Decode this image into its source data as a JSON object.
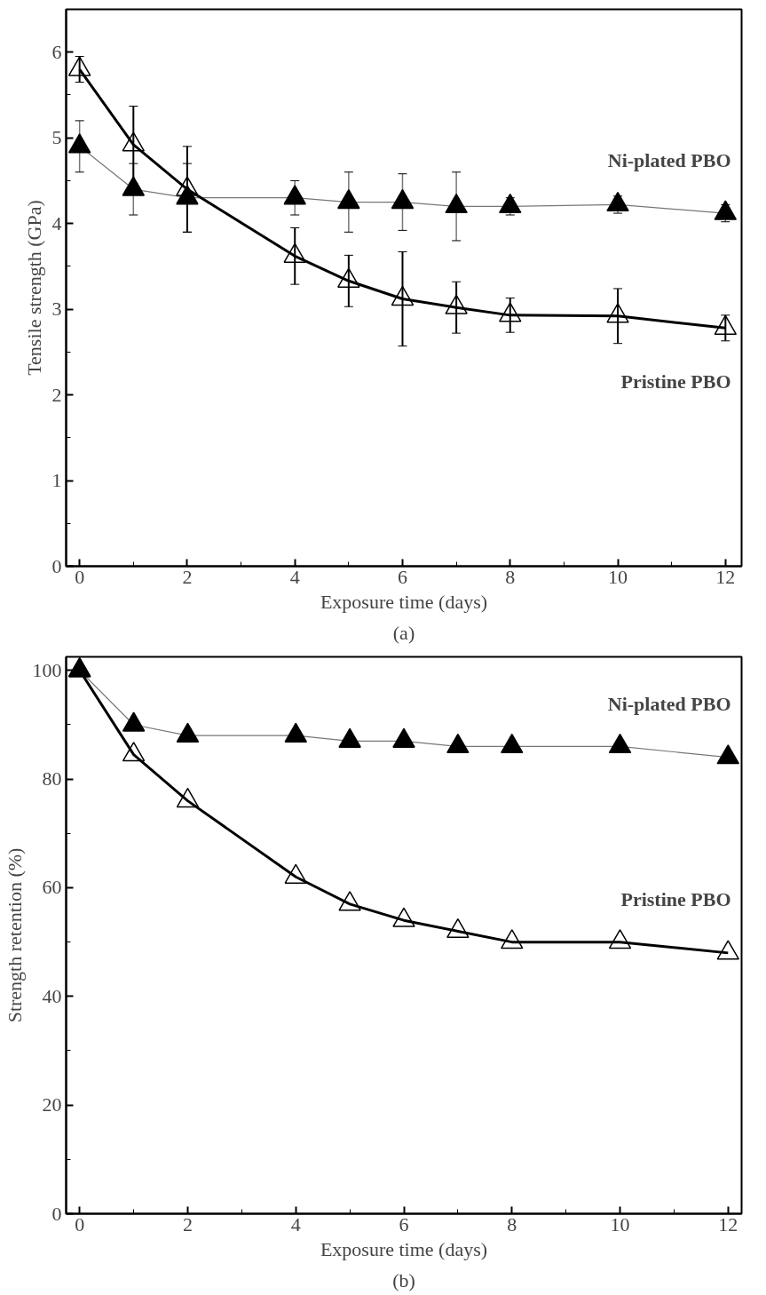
{
  "chart_data": [
    {
      "type": "line",
      "title": "(a)",
      "xlabel": "Exposure time (days)",
      "ylabel": "Tensile strength (GPa)",
      "x": [
        0,
        1,
        2,
        4,
        5,
        6,
        7,
        8,
        10,
        12
      ],
      "xlim": [
        -0.25,
        12.3
      ],
      "xticks": [
        0,
        2,
        4,
        6,
        8,
        10,
        12
      ],
      "ylim": [
        0,
        6.5
      ],
      "yticks": [
        0,
        1,
        2,
        3,
        4,
        5,
        6
      ],
      "marker": "triangle",
      "grid": false,
      "series": [
        {
          "name": "Ni-plated PBO",
          "color": "#000000",
          "values": [
            4.9,
            4.4,
            4.3,
            4.3,
            4.25,
            4.25,
            4.2,
            4.2,
            4.22,
            4.12
          ],
          "errors": [
            0.3,
            0.3,
            0.4,
            0.2,
            0.35,
            0.33,
            0.4,
            0.1,
            0.1,
            0.1
          ]
        },
        {
          "name": "Pristine PBO",
          "color": "#000000",
          "values": [
            5.8,
            4.92,
            4.4,
            3.62,
            3.33,
            3.12,
            3.02,
            2.93,
            2.92,
            2.78
          ],
          "errors": [
            0.15,
            0.45,
            0.5,
            0.33,
            0.3,
            0.55,
            0.3,
            0.2,
            0.32,
            0.15
          ]
        }
      ]
    },
    {
      "type": "line",
      "title": "(b)",
      "xlabel": "Exposure time (days)",
      "ylabel": "Strength retention (%)",
      "x": [
        0,
        1,
        2,
        4,
        5,
        6,
        7,
        8,
        10,
        12
      ],
      "xlim": [
        -0.25,
        12.25
      ],
      "xticks": [
        0,
        2,
        4,
        6,
        8,
        10,
        12
      ],
      "ylim": [
        0,
        102.5
      ],
      "yticks": [
        0,
        20,
        40,
        60,
        80,
        100
      ],
      "marker": "triangle",
      "grid": false,
      "series": [
        {
          "name": "Ni-plated PBO",
          "color": "#000000",
          "values": [
            100,
            90,
            88,
            88,
            87,
            87,
            86,
            86,
            86,
            84
          ]
        },
        {
          "name": "Pristine PBO",
          "color": "#000000",
          "values": [
            100,
            84.5,
            76,
            62,
            57,
            54,
            52,
            50,
            50,
            48
          ]
        }
      ]
    }
  ]
}
